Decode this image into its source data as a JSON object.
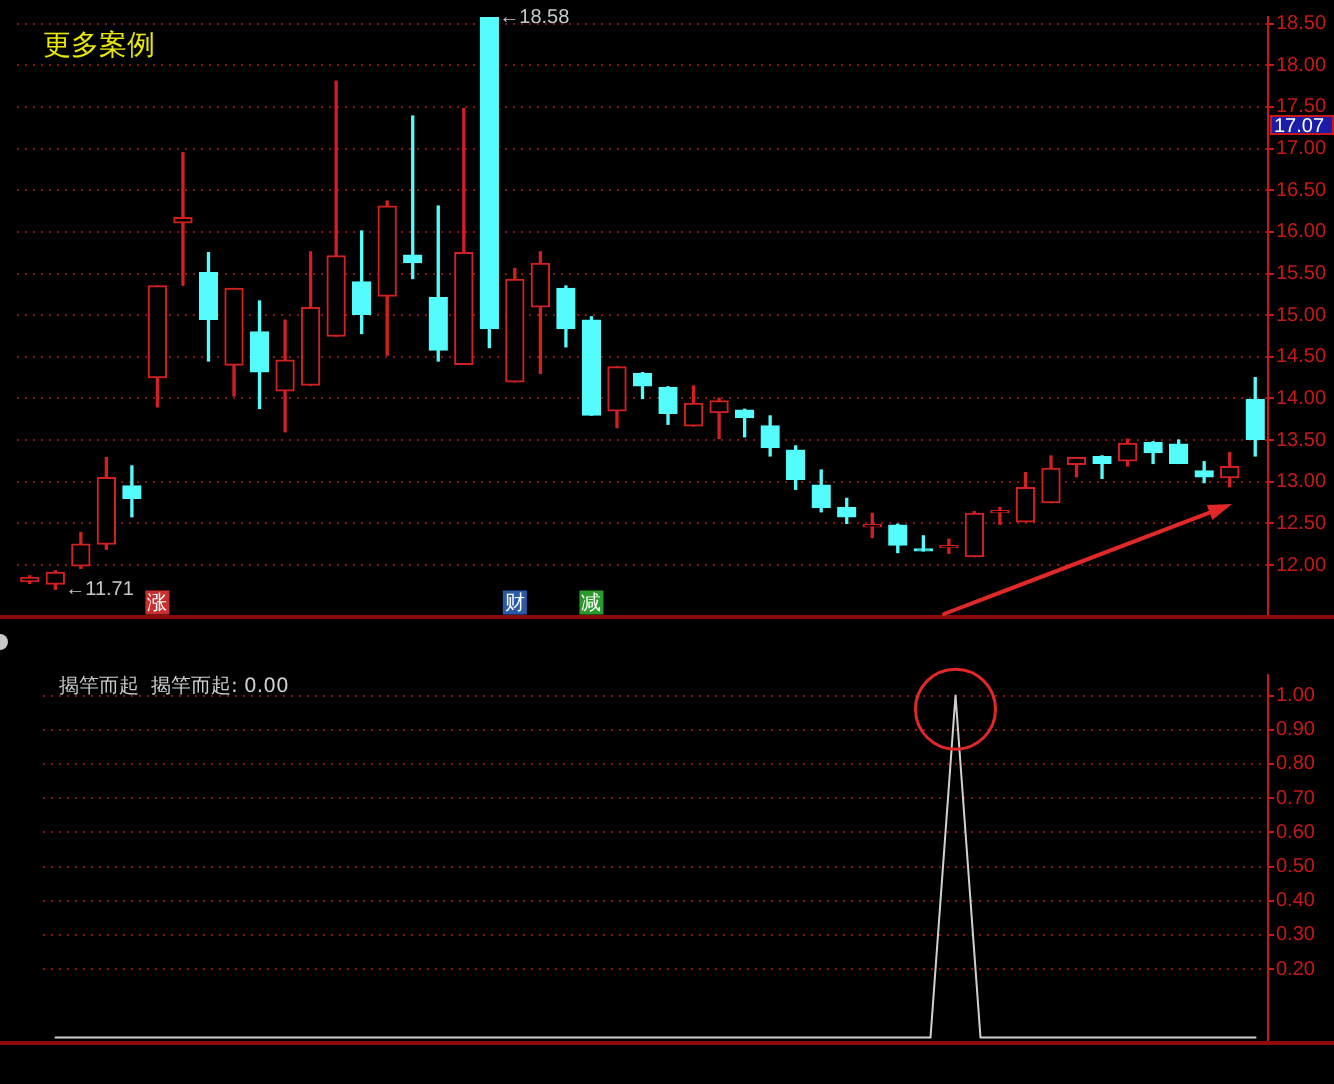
{
  "chart_data": [
    {
      "type": "candlestick",
      "categories": [
        null,
        null,
        null,
        null,
        null,
        null,
        null,
        null,
        null,
        null,
        null,
        null,
        null,
        null,
        null,
        null,
        null,
        null,
        null,
        null,
        null,
        null,
        null,
        null,
        null,
        null,
        null,
        null,
        null,
        null,
        null,
        null,
        null,
        null,
        null,
        null,
        null,
        null,
        null,
        null,
        null,
        null,
        null,
        null,
        null,
        null,
        null,
        null,
        null
      ],
      "ohlc": [
        [
          11.8,
          11.87,
          11.78,
          11.85
        ],
        [
          11.77,
          11.93,
          11.71,
          11.91
        ],
        [
          11.99,
          12.39,
          11.96,
          12.25
        ],
        [
          12.25,
          13.29,
          12.19,
          13.05
        ],
        [
          12.95,
          13.19,
          12.58,
          12.8
        ],
        [
          14.25,
          15.35,
          13.9,
          15.35
        ],
        [
          16.11,
          16.95,
          15.36,
          16.17
        ],
        [
          15.51,
          15.75,
          14.45,
          14.95
        ],
        [
          14.4,
          15.32,
          14.03,
          15.32
        ],
        [
          14.8,
          15.17,
          13.88,
          14.32
        ],
        [
          14.09,
          14.94,
          13.6,
          14.46
        ],
        [
          14.16,
          15.76,
          14.16,
          15.09
        ],
        [
          14.75,
          17.81,
          14.75,
          15.71
        ],
        [
          15.4,
          16.01,
          14.78,
          15.01
        ],
        [
          15.23,
          16.37,
          14.52,
          16.31
        ],
        [
          15.72,
          17.39,
          15.44,
          15.63
        ],
        [
          15.21,
          16.31,
          14.45,
          14.58
        ],
        [
          14.41,
          17.48,
          14.41,
          15.75
        ],
        [
          18.58,
          18.58,
          14.61,
          14.84
        ],
        [
          14.2,
          15.56,
          14.2,
          15.43
        ],
        [
          15.1,
          15.76,
          14.3,
          15.62
        ],
        [
          15.32,
          15.35,
          14.62,
          14.84
        ],
        [
          14.94,
          14.98,
          13.8,
          13.8
        ],
        [
          13.85,
          14.38,
          13.65,
          14.38
        ],
        [
          14.3,
          14.31,
          14.0,
          14.15
        ],
        [
          14.13,
          14.14,
          13.69,
          13.82
        ],
        [
          13.67,
          14.15,
          13.67,
          13.94
        ],
        [
          13.83,
          14.0,
          13.52,
          13.97
        ],
        [
          13.86,
          13.87,
          13.54,
          13.77
        ],
        [
          13.67,
          13.79,
          13.31,
          13.41
        ],
        [
          13.38,
          13.43,
          12.91,
          13.03
        ],
        [
          12.96,
          13.14,
          12.64,
          12.69
        ],
        [
          12.69,
          12.8,
          12.5,
          12.58
        ],
        [
          12.46,
          12.62,
          12.33,
          12.47
        ],
        [
          12.48,
          12.49,
          12.15,
          12.24
        ],
        [
          12.18,
          12.35,
          12.17,
          12.17
        ],
        [
          12.21,
          12.31,
          12.14,
          12.22
        ],
        [
          12.1,
          12.64,
          12.1,
          12.62
        ],
        [
          12.63,
          12.69,
          12.49,
          12.64
        ],
        [
          12.52,
          13.11,
          12.52,
          12.93
        ],
        [
          12.75,
          13.31,
          12.75,
          13.16
        ],
        [
          13.21,
          13.29,
          13.06,
          13.29
        ],
        [
          13.3,
          13.31,
          13.04,
          13.22
        ],
        [
          13.25,
          13.51,
          13.19,
          13.46
        ],
        [
          13.47,
          13.48,
          13.22,
          13.35
        ],
        [
          13.45,
          13.5,
          13.22,
          13.22
        ],
        [
          13.13,
          13.24,
          12.99,
          13.06
        ],
        [
          13.05,
          13.35,
          12.94,
          13.18
        ],
        [
          13.99,
          14.25,
          13.31,
          13.51
        ]
      ],
      "colors": [
        "#d22020",
        "#d22020",
        "#d22020",
        "#d22020",
        "#54fcfc",
        "#d22020",
        "#d22020",
        "#54fcfc",
        "#d22020",
        "#54fcfc",
        "#d22020",
        "#d22020",
        "#d22020",
        "#54fcfc",
        "#d22020",
        "#54fcfc",
        "#54fcfc",
        "#d22020",
        "#54fcfc",
        "#d22020",
        "#d22020",
        "#54fcfc",
        "#54fcfc",
        "#d22020",
        "#54fcfc",
        "#54fcfc",
        "#d22020",
        "#d22020",
        "#54fcfc",
        "#54fcfc",
        "#54fcfc",
        "#54fcfc",
        "#54fcfc",
        "#d22020",
        "#54fcfc",
        "#54fcfc",
        "#d22020",
        "#d22020",
        "#d22020",
        "#d22020",
        "#d22020",
        "#d22020",
        "#54fcfc",
        "#d22020",
        "#54fcfc",
        "#54fcfc",
        "#54fcfc",
        "#d22020",
        "#54fcfc"
      ],
      "ylim": [
        11.4,
        18.58
      ],
      "yticks": [
        {
          "value": 12,
          "label": "12.00"
        },
        {
          "value": 12.5,
          "label": "12.50"
        },
        {
          "value": 13,
          "label": "13.00"
        },
        {
          "value": 13.5,
          "label": "13.50"
        },
        {
          "value": 14,
          "label": "14.00"
        },
        {
          "value": 14.5,
          "label": "14.50"
        },
        {
          "value": 15,
          "label": "15.00"
        },
        {
          "value": 15.5,
          "label": "15.50"
        },
        {
          "value": 16,
          "label": "16.00"
        },
        {
          "value": 16.5,
          "label": "16.50"
        },
        {
          "value": 17,
          "label": "17.00"
        },
        {
          "value": 17.5,
          "label": "17.50"
        },
        {
          "value": 18,
          "label": "18.00"
        },
        {
          "value": 18.5,
          "label": "18.50"
        }
      ],
      "grid": "y",
      "tick_labels": "y",
      "annotations": [
        "更多案例",
        "←18.58",
        "←11.71",
        "17.07"
      ],
      "series": [
        {
          "type": "scatter",
          "marker": "square",
          "values": [
            null,
            null,
            null,
            null,
            null,
            11.55,
            null,
            null,
            null,
            null,
            null,
            null,
            null,
            null,
            null,
            null,
            null,
            null,
            null,
            11.55,
            null,
            null,
            11.55,
            null,
            null,
            null,
            null,
            null,
            null,
            null,
            null,
            null,
            null,
            null,
            null,
            null,
            null,
            null,
            null,
            null,
            null,
            null,
            null,
            null,
            null,
            null,
            null,
            null,
            null
          ],
          "colors": [
            null,
            null,
            null,
            null,
            null,
            "#c83030",
            null,
            null,
            null,
            null,
            null,
            null,
            null,
            null,
            null,
            null,
            null,
            null,
            null,
            "#2a5aa8",
            null,
            null,
            "#2a9a2a",
            null,
            null,
            null,
            null,
            null,
            null,
            null,
            null,
            null,
            null,
            null,
            null,
            null,
            null,
            null,
            null,
            null,
            null,
            null,
            null,
            null,
            null,
            null,
            null,
            null,
            null
          ],
          "value_labels": [
            null,
            null,
            null,
            null,
            null,
            "涨",
            null,
            null,
            null,
            null,
            null,
            null,
            null,
            null,
            null,
            null,
            null,
            null,
            null,
            "财",
            null,
            null,
            "减",
            null,
            null,
            null,
            null,
            null,
            null,
            null,
            null,
            null,
            null,
            null,
            null,
            null,
            null,
            null,
            null,
            null,
            null,
            null,
            null,
            null,
            null,
            null,
            null,
            null,
            null
          ]
        }
      ]
    },
    {
      "type": "line",
      "title": "揭竿而起",
      "categories": [
        null,
        null,
        null,
        null,
        null,
        null,
        null,
        null,
        null,
        null,
        null,
        null,
        null,
        null,
        null,
        null,
        null,
        null,
        null,
        null,
        null,
        null,
        null,
        null,
        null,
        null,
        null,
        null,
        null,
        null,
        null,
        null,
        null,
        null,
        null,
        null,
        null,
        null,
        null,
        null,
        null,
        null,
        null,
        null,
        null,
        null,
        null,
        null,
        null
      ],
      "series": [
        {
          "name": "揭竿而起: 0.00",
          "color": "#d0d0d0",
          "values": [
            0,
            0,
            0,
            0,
            0,
            0,
            0,
            0,
            0,
            0,
            0,
            0,
            0,
            0,
            0,
            0,
            0,
            0,
            0,
            0,
            0,
            0,
            0,
            0,
            0,
            0,
            0,
            0,
            0,
            0,
            0,
            0,
            0,
            0,
            0,
            0,
            1,
            0,
            0,
            0,
            0,
            0,
            0,
            0,
            0,
            0,
            0,
            0,
            0
          ]
        },
        {
          "type": "scatter",
          "marker": "circle",
          "color": "#e02828",
          "values": [
            null,
            null,
            null,
            null,
            null,
            null,
            null,
            null,
            null,
            null,
            null,
            null,
            null,
            null,
            null,
            null,
            null,
            null,
            null,
            null,
            null,
            null,
            null,
            null,
            null,
            null,
            null,
            null,
            null,
            null,
            null,
            null,
            null,
            null,
            null,
            null,
            0.96,
            null,
            null,
            null,
            null,
            null,
            null,
            null,
            null,
            null,
            null,
            null,
            null
          ]
        }
      ],
      "ylim": [
        -0.01,
        1.06
      ],
      "yticks": [
        {
          "value": 0.2,
          "label": "0.20"
        },
        {
          "value": 0.3,
          "label": "0.30"
        },
        {
          "value": 0.4,
          "label": "0.40"
        },
        {
          "value": 0.5,
          "label": "0.50"
        },
        {
          "value": 0.6,
          "label": "0.60"
        },
        {
          "value": 0.7,
          "label": "0.70"
        },
        {
          "value": 0.8,
          "label": "0.80"
        },
        {
          "value": 0.9,
          "label": "0.90"
        },
        {
          "value": 1,
          "label": "1.00"
        }
      ],
      "grid": "y",
      "legend": "top left",
      "tick_labels": "y"
    }
  ]
}
